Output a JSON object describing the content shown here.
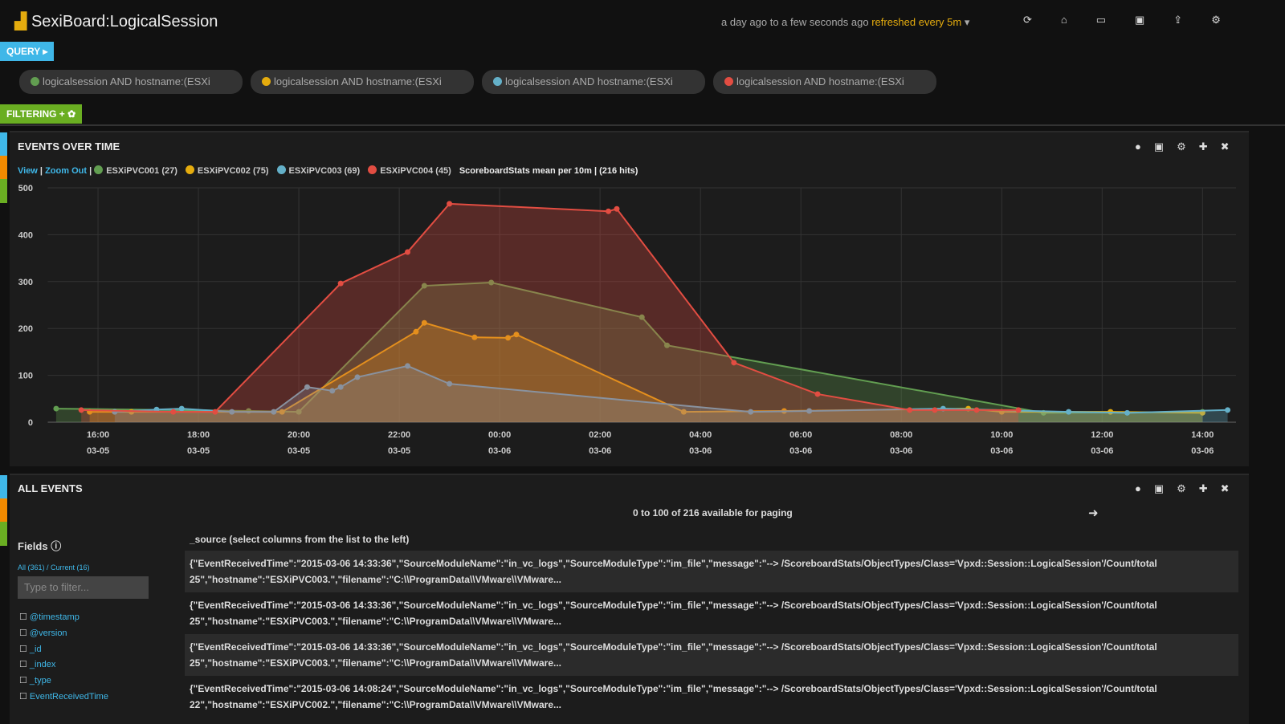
{
  "header": {
    "title": "SexiBoard:LogicalSession",
    "timespan": "a day ago to a few seconds ago",
    "refresh": "refreshed every 5m"
  },
  "query": {
    "button": "QUERY",
    "pills": [
      "logicalsession AND hostname:(ESXi",
      "logicalsession AND hostname:(ESXi",
      "logicalsession AND hostname:(ESXi",
      "logicalsession AND hostname:(ESXi"
    ],
    "colors": [
      "#629e51",
      "#e5ac0e",
      "#64b0c8",
      "#e24d42"
    ]
  },
  "filtering": {
    "button": "FILTERING"
  },
  "chart_panel": {
    "title": "EVENTS OVER TIME",
    "view": "View",
    "zoom": "Zoom Out",
    "summary": "ScoreboardStats mean per 10m | (216 hits)"
  },
  "chart_data": {
    "type": "area",
    "xlim": [
      "03-05 15:00",
      "03-06 14:40"
    ],
    "xticks": [
      {
        "value": "03-05 16:00",
        "label": [
          "16:00",
          "03-05"
        ]
      },
      {
        "value": "03-05 18:00",
        "label": [
          "18:00",
          "03-05"
        ]
      },
      {
        "value": "03-05 20:00",
        "label": [
          "20:00",
          "03-05"
        ]
      },
      {
        "value": "03-05 22:00",
        "label": [
          "22:00",
          "03-05"
        ]
      },
      {
        "value": "03-06 00:00",
        "label": [
          "00:00",
          "03-06"
        ]
      },
      {
        "value": "03-06 02:00",
        "label": [
          "02:00",
          "03-06"
        ]
      },
      {
        "value": "03-06 04:00",
        "label": [
          "04:00",
          "03-06"
        ]
      },
      {
        "value": "03-06 06:00",
        "label": [
          "06:00",
          "03-06"
        ]
      },
      {
        "value": "03-06 08:00",
        "label": [
          "08:00",
          "03-06"
        ]
      },
      {
        "value": "03-06 10:00",
        "label": [
          "10:00",
          "03-06"
        ]
      },
      {
        "value": "03-06 12:00",
        "label": [
          "12:00",
          "03-06"
        ]
      },
      {
        "value": "03-06 14:00",
        "label": [
          "14:00",
          "03-06"
        ]
      }
    ],
    "ylim": [
      0,
      500
    ],
    "yticks": [
      0,
      100,
      200,
      300,
      400,
      500
    ],
    "grid": true,
    "series": [
      {
        "name": "ESXiPVC001 (27)",
        "color": "#629e51",
        "x": [
          "03-05 15:10",
          "03-05 19:00",
          "03-05 20:00",
          "03-05 22:30",
          "03-05 23:50",
          "03-06 02:50",
          "03-06 03:20",
          "03-06 10:50",
          "03-06 14:00"
        ],
        "values": [
          29,
          24,
          22,
          291,
          298,
          224,
          164,
          20,
          22
        ]
      },
      {
        "name": "ESXiPVC002 (75)",
        "color": "#e5ac0e",
        "x": [
          "03-05 15:50",
          "03-05 16:40",
          "03-05 19:40",
          "03-05 22:20",
          "03-05 22:30",
          "03-05 23:30",
          "03-06 00:10",
          "03-06 00:20",
          "03-06 03:40",
          "03-06 05:40",
          "03-06 09:20",
          "03-06 10:00",
          "03-06 12:10",
          "03-06 14:00"
        ],
        "values": [
          22,
          22,
          22,
          193,
          212,
          181,
          180,
          187,
          22,
          24,
          29,
          22,
          22,
          20
        ]
      },
      {
        "name": "ESXiPVC003 (69)",
        "color": "#64b0c8",
        "x": [
          "03-05 16:20",
          "03-05 17:10",
          "03-05 17:40",
          "03-05 18:40",
          "03-05 19:30",
          "03-05 20:10",
          "03-05 20:40",
          "03-05 20:50",
          "03-05 21:10",
          "03-05 22:10",
          "03-05 23:00",
          "03-06 05:00",
          "03-06 06:10",
          "03-06 08:50",
          "03-06 11:20",
          "03-06 12:30",
          "03-06 14:30"
        ],
        "values": [
          22,
          27,
          29,
          22,
          22,
          75,
          67,
          75,
          96,
          120,
          82,
          22,
          24,
          29,
          22,
          20,
          26
        ]
      },
      {
        "name": "ESXiPVC004 (45)",
        "color": "#e24d42",
        "x": [
          "03-05 15:40",
          "03-05 17:30",
          "03-05 18:20",
          "03-05 20:50",
          "03-05 22:10",
          "03-05 23:00",
          "03-06 02:10",
          "03-06 02:20",
          "03-06 04:40",
          "03-06 06:20",
          "03-06 08:10",
          "03-06 08:40",
          "03-06 09:30",
          "03-06 10:20"
        ],
        "values": [
          26,
          22,
          22,
          296,
          363,
          466,
          450,
          455,
          127,
          60,
          26,
          26,
          26,
          26
        ]
      }
    ]
  },
  "events_panel": {
    "title": "ALL EVENTS",
    "paging": "0 to 100 of 216 available for paging",
    "fields_title": "Fields",
    "all": "All (361)",
    "current": "Current (16)",
    "filter_placeholder": "Type to filter...",
    "fields": [
      "@timestamp",
      "@version",
      "_id",
      "_index",
      "_type",
      "EventReceivedTime"
    ],
    "column": "_source (select columns from the list to the left)",
    "rows": [
      [
        "{\"EventReceivedTime\":\"2015-03-06 14:33:36\",\"SourceModuleName\":\"in_vc_logs\",\"SourceModuleType\":\"im_file\",\"message\":\"--> /ScoreboardStats/ObjectTypes/Class='Vpxd::Session::LogicalSession'/Count/total",
        "25\",\"hostname\":\"ESXiPVC003.\",\"filename\":\"C:\\\\ProgramData\\\\VMware\\\\VMware..."
      ],
      [
        "{\"EventReceivedTime\":\"2015-03-06 14:33:36\",\"SourceModuleName\":\"in_vc_logs\",\"SourceModuleType\":\"im_file\",\"message\":\"--> /ScoreboardStats/ObjectTypes/Class='Vpxd::Session::LogicalSession'/Count/total",
        "25\",\"hostname\":\"ESXiPVC003.\",\"filename\":\"C:\\\\ProgramData\\\\VMware\\\\VMware..."
      ],
      [
        "{\"EventReceivedTime\":\"2015-03-06 14:33:36\",\"SourceModuleName\":\"in_vc_logs\",\"SourceModuleType\":\"im_file\",\"message\":\"--> /ScoreboardStats/ObjectTypes/Class='Vpxd::Session::LogicalSession'/Count/total",
        "25\",\"hostname\":\"ESXiPVC003.\",\"filename\":\"C:\\\\ProgramData\\\\VMware\\\\VMware..."
      ],
      [
        "{\"EventReceivedTime\":\"2015-03-06 14:08:24\",\"SourceModuleName\":\"in_vc_logs\",\"SourceModuleType\":\"im_file\",\"message\":\"--> /ScoreboardStats/ObjectTypes/Class='Vpxd::Session::LogicalSession'/Count/total",
        "22\",\"hostname\":\"ESXiPVC002.\",\"filename\":\"C:\\\\ProgramData\\\\VMware\\\\VMware..."
      ]
    ]
  }
}
